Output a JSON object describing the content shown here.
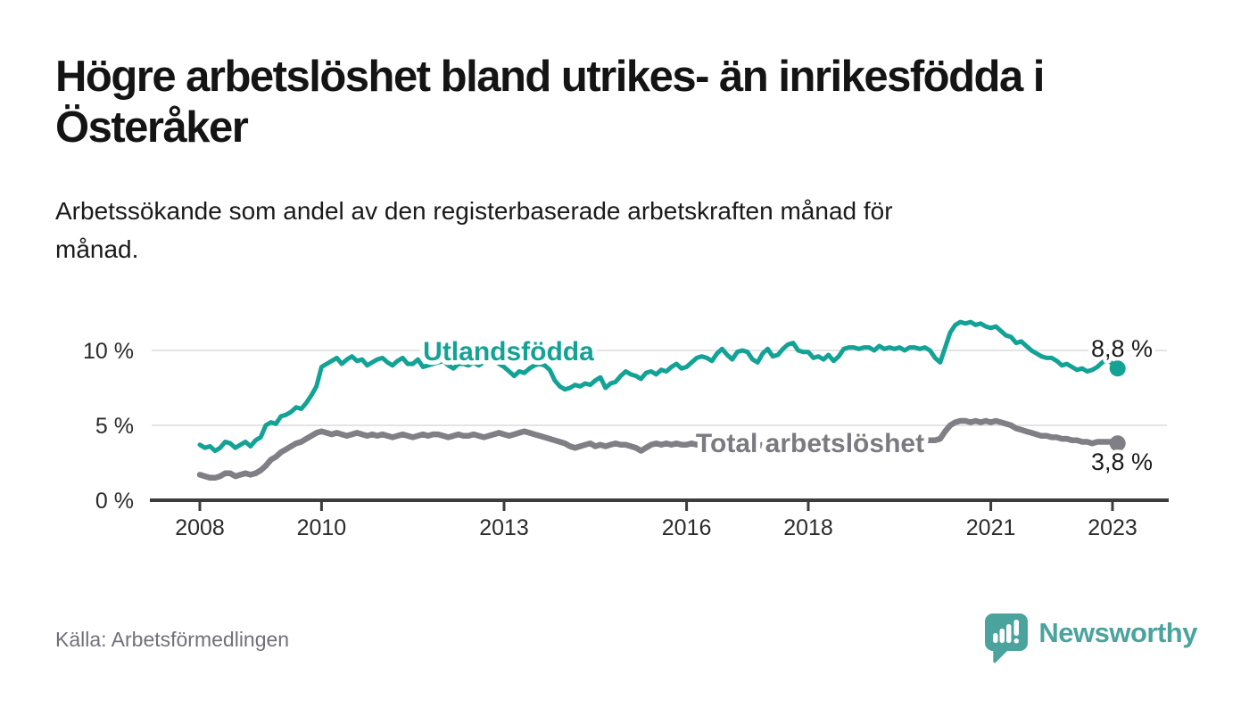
{
  "header": {
    "title_lines": [
      "Högre arbetslöshet bland utrikes- än inrikesfödda i",
      "Österåker"
    ],
    "subtitle_lines": [
      "Arbetssökande som andel av den registerbaserade arbetskraften månad för",
      "månad."
    ]
  },
  "footer": {
    "source": "Källa: Arbetsförmedlingen",
    "brand_name": "Newsworthy",
    "brand_color": "#4aa39d"
  },
  "colors": {
    "foreign_series": "#12a296",
    "total_series": "#7f7f85",
    "grid": "#dcdcdc",
    "axis": "#3c3c3c",
    "text": "#1a1a1a",
    "muted": "#70707a"
  },
  "chart_data": {
    "type": "line",
    "x_start_year": 2008,
    "x_months_per_point": 1,
    "x_tick_labels": [
      "2008",
      "2010",
      "2013",
      "2016",
      "2018",
      "2021",
      "2023"
    ],
    "y_tick_labels": [
      "10 %",
      "5 %",
      "0 %"
    ],
    "y_ticks_values": [
      10,
      5,
      0
    ],
    "ylim": [
      0,
      12.5
    ],
    "grid": "horizontal-only",
    "legend_position": "inline-labels",
    "series": [
      {
        "name": "Utlandsfödda",
        "color": "#12a296",
        "end_label": "8,8 %",
        "end_value": 8.8,
        "values": [
          3.7,
          3.5,
          3.6,
          3.3,
          3.5,
          3.9,
          3.8,
          3.5,
          3.7,
          3.9,
          3.6,
          4.0,
          4.2,
          5.0,
          5.2,
          5.1,
          5.6,
          5.7,
          5.9,
          6.2,
          6.1,
          6.5,
          7.0,
          7.6,
          8.9,
          9.1,
          9.3,
          9.5,
          9.1,
          9.4,
          9.6,
          9.3,
          9.4,
          9.0,
          9.2,
          9.4,
          9.5,
          9.2,
          9.0,
          9.3,
          9.5,
          9.1,
          9.1,
          9.4,
          8.9,
          9.0,
          9.1,
          9.2,
          9.3,
          9.0,
          8.8,
          9.1,
          9.1,
          9.0,
          9.2,
          9.0,
          9.2,
          9.4,
          9.3,
          9.1,
          8.9,
          8.6,
          8.3,
          8.6,
          8.5,
          8.8,
          9.0,
          9.1,
          9.0,
          8.7,
          8.0,
          7.6,
          7.4,
          7.5,
          7.7,
          7.6,
          7.8,
          7.7,
          8.0,
          8.2,
          7.5,
          7.8,
          7.9,
          8.3,
          8.6,
          8.4,
          8.3,
          8.1,
          8.5,
          8.6,
          8.4,
          8.7,
          8.6,
          8.9,
          9.1,
          8.8,
          8.9,
          9.2,
          9.5,
          9.6,
          9.5,
          9.3,
          9.8,
          10.1,
          9.7,
          9.4,
          9.9,
          10.0,
          9.9,
          9.4,
          9.2,
          9.8,
          10.1,
          9.6,
          9.7,
          10.1,
          10.4,
          10.5,
          10.0,
          9.9,
          9.9,
          9.5,
          9.6,
          9.4,
          9.7,
          9.3,
          9.6,
          10.1,
          10.2,
          10.2,
          10.1,
          10.2,
          10.2,
          10.0,
          10.3,
          10.1,
          10.2,
          10.1,
          10.2,
          10.0,
          10.2,
          10.2,
          10.1,
          10.2,
          10.0,
          9.5,
          9.2,
          10.2,
          11.2,
          11.7,
          11.9,
          11.8,
          11.9,
          11.7,
          11.8,
          11.6,
          11.5,
          11.6,
          11.3,
          11.0,
          10.9,
          10.5,
          10.6,
          10.3,
          10.0,
          9.8,
          9.6,
          9.5,
          9.5,
          9.3,
          9.0,
          9.1,
          8.9,
          8.7,
          8.8,
          8.6,
          8.7,
          8.9,
          9.2,
          9.4,
          9.1,
          8.8
        ]
      },
      {
        "name": "Total arbetslöshet",
        "color": "#7f7f85",
        "end_label": "3,8 %",
        "end_value": 3.8,
        "values": [
          1.7,
          1.6,
          1.5,
          1.5,
          1.6,
          1.8,
          1.8,
          1.6,
          1.7,
          1.8,
          1.7,
          1.8,
          2.0,
          2.3,
          2.7,
          2.9,
          3.2,
          3.4,
          3.6,
          3.8,
          3.9,
          4.1,
          4.3,
          4.5,
          4.6,
          4.5,
          4.4,
          4.5,
          4.4,
          4.3,
          4.4,
          4.5,
          4.4,
          4.3,
          4.4,
          4.3,
          4.4,
          4.3,
          4.2,
          4.3,
          4.4,
          4.3,
          4.2,
          4.3,
          4.4,
          4.3,
          4.4,
          4.4,
          4.3,
          4.2,
          4.3,
          4.4,
          4.3,
          4.3,
          4.4,
          4.3,
          4.2,
          4.3,
          4.4,
          4.5,
          4.4,
          4.3,
          4.4,
          4.5,
          4.6,
          4.5,
          4.4,
          4.3,
          4.2,
          4.1,
          4.0,
          3.9,
          3.8,
          3.6,
          3.5,
          3.6,
          3.7,
          3.8,
          3.6,
          3.7,
          3.6,
          3.7,
          3.8,
          3.7,
          3.7,
          3.6,
          3.5,
          3.3,
          3.5,
          3.7,
          3.8,
          3.7,
          3.8,
          3.7,
          3.8,
          3.7,
          3.7,
          3.8,
          3.7,
          3.8,
          3.7,
          3.6,
          3.7,
          3.8,
          3.7,
          3.8,
          3.7,
          3.8,
          3.8,
          3.7,
          3.6,
          3.7,
          3.6,
          3.5,
          3.6,
          3.7,
          3.8,
          3.7,
          3.8,
          3.7,
          3.7,
          3.8,
          3.7,
          3.6,
          3.7,
          3.8,
          3.7,
          3.8,
          3.9,
          3.8,
          3.9,
          3.8,
          3.9,
          3.8,
          3.9,
          4.0,
          3.9,
          4.0,
          4.1,
          4.0,
          4.1,
          4.0,
          4.1,
          4.0,
          4.0,
          4.0,
          4.1,
          4.6,
          5.0,
          5.2,
          5.3,
          5.3,
          5.2,
          5.3,
          5.2,
          5.3,
          5.2,
          5.3,
          5.2,
          5.1,
          5.0,
          4.8,
          4.7,
          4.6,
          4.5,
          4.4,
          4.3,
          4.3,
          4.2,
          4.2,
          4.1,
          4.1,
          4.0,
          4.0,
          3.9,
          3.9,
          3.8,
          3.9,
          3.9,
          3.9,
          3.9,
          3.8
        ]
      }
    ]
  }
}
